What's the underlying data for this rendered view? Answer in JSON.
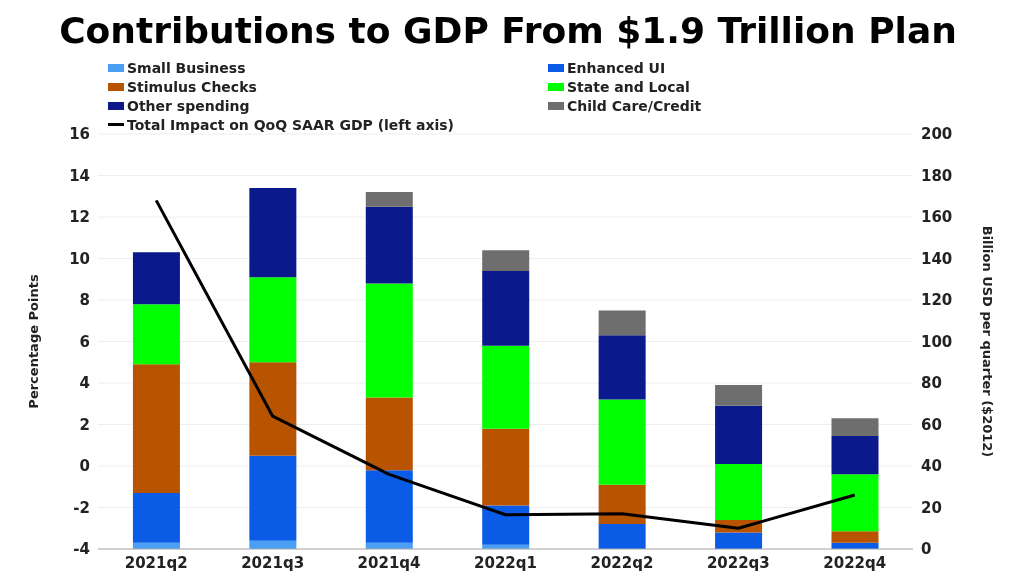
{
  "chart_data": {
    "type": "bar",
    "title": "Contributions to GDP From $1.9 Trillion Plan",
    "ylabel": "Percentage Points",
    "y2label": "Billion USD per quarter ($2012)",
    "categories": [
      "2021q2",
      "2021q3",
      "2021q4",
      "2022q1",
      "2022q2",
      "2022q3",
      "2022q4"
    ],
    "stacked": true,
    "grid": "y",
    "legend": "top",
    "ylim": [
      -4,
      16
    ],
    "yticks": [
      -4,
      -2,
      0,
      2,
      4,
      6,
      8,
      10,
      12,
      14,
      16
    ],
    "y2lim": [
      0,
      200
    ],
    "y2ticks": [
      0,
      20,
      40,
      60,
      80,
      100,
      120,
      140,
      160,
      180,
      200
    ],
    "series": [
      {
        "name": "Small Business",
        "color": "#4a9ff5",
        "axis": "y2",
        "values": [
          3,
          4,
          3,
          2,
          null,
          0,
          0
        ]
      },
      {
        "name": "Enhanced UI",
        "color": "#0a5ce6",
        "axis": "y2",
        "values": [
          24,
          41,
          35,
          19,
          12,
          8,
          3
        ]
      },
      {
        "name": "Stimulus Checks",
        "color": "#b85400",
        "axis": "y2",
        "values": [
          62,
          45,
          35,
          37,
          19,
          6,
          5.5
        ]
      },
      {
        "name": "State and Local",
        "color": "#00ff00",
        "axis": "y2",
        "values": [
          29,
          41,
          55,
          40,
          41,
          27,
          27.5
        ]
      },
      {
        "name": "Other spending",
        "color": "#0a1a8c",
        "axis": "y2",
        "values": [
          25,
          43,
          37,
          36,
          31,
          28,
          18.5
        ]
      },
      {
        "name": "Child Care/Credit",
        "color": "#6e6e6e",
        "axis": "y2",
        "values": [
          0,
          0,
          7,
          10,
          12,
          10,
          8.5
        ]
      },
      {
        "name": "Total Impact on QoQ SAAR GDP (left axis)",
        "type": "line",
        "color": "#000000",
        "axis": "y",
        "values": [
          12.8,
          2.4,
          -0.4,
          -2.35,
          -2.3,
          -3.0,
          -1.4
        ]
      }
    ]
  }
}
